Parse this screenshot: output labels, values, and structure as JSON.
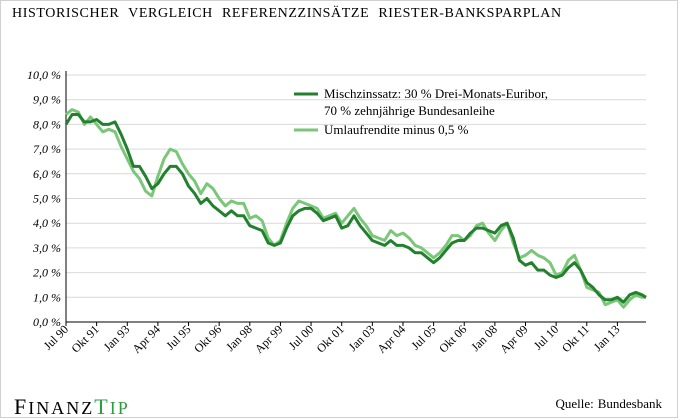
{
  "header": {
    "title": "HISTORISCHER VERGLEICH REFERENZZINSÄTZE RIESTER-BANKSPARPLAN"
  },
  "footer": {
    "logo_part1": "F",
    "logo_part2": "INANZ",
    "logo_part3": "T",
    "logo_part4": "IP",
    "source_label": "Quelle:",
    "source_value": "Bundesbank"
  },
  "colors": {
    "series_dark": "#23802f",
    "series_light": "#7bc779",
    "grid": "#d9d9d9",
    "logo_accent": "#2e9b3f"
  },
  "chart_data": {
    "type": "line",
    "title": "HISTORISCHER VERGLEICH REFERENZZINSÄTZE RIESTER-BANKSPARPLAN",
    "xlabel": "",
    "ylabel": "",
    "ylim": [
      0,
      10
    ],
    "y_ticks": [
      "0,0 %",
      "1,0 %",
      "2,0 %",
      "3,0 %",
      "4,0 %",
      "5,0 %",
      "6,0 %",
      "7,0 %",
      "8,0 %",
      "9,0 %",
      "10,0 %"
    ],
    "x_ticks": [
      {
        "label": "Jul 90",
        "x": "1990-07"
      },
      {
        "label": "Okt 91",
        "x": "1991-10"
      },
      {
        "label": "Jan 93",
        "x": "1993-01"
      },
      {
        "label": "Apr 94",
        "x": "1994-04"
      },
      {
        "label": "Jul 95",
        "x": "1995-07"
      },
      {
        "label": "Okt 96",
        "x": "1996-10"
      },
      {
        "label": "Jan 98",
        "x": "1998-01"
      },
      {
        "label": "Apr 99",
        "x": "1999-04"
      },
      {
        "label": "Jul 00",
        "x": "2000-07"
      },
      {
        "label": "Okt 01",
        "x": "2001-10"
      },
      {
        "label": "Jan 03",
        "x": "2003-01"
      },
      {
        "label": "Apr 04",
        "x": "2004-04"
      },
      {
        "label": "Jul 05",
        "x": "2005-07"
      },
      {
        "label": "Okt 06",
        "x": "2006-10"
      },
      {
        "label": "Jan 08",
        "x": "2008-01"
      },
      {
        "label": "Apr 09",
        "x": "2009-04"
      },
      {
        "label": "Jul 10",
        "x": "2010-07"
      },
      {
        "label": "Okt 11",
        "x": "2011-10"
      },
      {
        "label": "Jan 13",
        "x": "2013-01"
      }
    ],
    "x_range": [
      "1990-07",
      "2014-03"
    ],
    "grid": "horizontal",
    "legend_position": "top-right",
    "series": [
      {
        "name_line1": "Mischzinssatz: 30 % Drei-Monats-Euribor,",
        "name_line2": "70 % zehnjährige Bundesanleihe",
        "color": "#23802f",
        "points": [
          [
            "1990-07",
            8.0
          ],
          [
            "1990-10",
            8.4
          ],
          [
            "1991-01",
            8.4
          ],
          [
            "1991-04",
            8.1
          ],
          [
            "1991-07",
            8.1
          ],
          [
            "1991-10",
            8.2
          ],
          [
            "1992-01",
            8.0
          ],
          [
            "1992-04",
            8.0
          ],
          [
            "1992-07",
            8.1
          ],
          [
            "1992-10",
            7.6
          ],
          [
            "1993-01",
            7.0
          ],
          [
            "1993-04",
            6.3
          ],
          [
            "1993-07",
            6.3
          ],
          [
            "1993-10",
            5.9
          ],
          [
            "1994-01",
            5.4
          ],
          [
            "1994-04",
            5.6
          ],
          [
            "1994-07",
            6.0
          ],
          [
            "1994-10",
            6.3
          ],
          [
            "1995-01",
            6.3
          ],
          [
            "1995-04",
            6.0
          ],
          [
            "1995-07",
            5.5
          ],
          [
            "1995-10",
            5.2
          ],
          [
            "1996-01",
            4.8
          ],
          [
            "1996-04",
            5.0
          ],
          [
            "1996-07",
            4.7
          ],
          [
            "1996-10",
            4.5
          ],
          [
            "1997-01",
            4.3
          ],
          [
            "1997-04",
            4.5
          ],
          [
            "1997-07",
            4.3
          ],
          [
            "1997-10",
            4.3
          ],
          [
            "1998-01",
            3.9
          ],
          [
            "1998-04",
            3.8
          ],
          [
            "1998-07",
            3.7
          ],
          [
            "1998-10",
            3.2
          ],
          [
            "1999-01",
            3.1
          ],
          [
            "1999-04",
            3.2
          ],
          [
            "1999-07",
            3.8
          ],
          [
            "1999-10",
            4.3
          ],
          [
            "2000-01",
            4.5
          ],
          [
            "2000-04",
            4.6
          ],
          [
            "2000-07",
            4.6
          ],
          [
            "2000-10",
            4.4
          ],
          [
            "2001-01",
            4.1
          ],
          [
            "2001-04",
            4.2
          ],
          [
            "2001-07",
            4.3
          ],
          [
            "2001-10",
            3.8
          ],
          [
            "2002-01",
            3.9
          ],
          [
            "2002-04",
            4.3
          ],
          [
            "2002-07",
            3.9
          ],
          [
            "2002-10",
            3.6
          ],
          [
            "2003-01",
            3.3
          ],
          [
            "2003-04",
            3.2
          ],
          [
            "2003-07",
            3.1
          ],
          [
            "2003-10",
            3.3
          ],
          [
            "2004-01",
            3.1
          ],
          [
            "2004-04",
            3.1
          ],
          [
            "2004-07",
            3.0
          ],
          [
            "2004-10",
            2.8
          ],
          [
            "2005-01",
            2.8
          ],
          [
            "2005-04",
            2.6
          ],
          [
            "2005-07",
            2.4
          ],
          [
            "2005-10",
            2.6
          ],
          [
            "2006-01",
            2.9
          ],
          [
            "2006-04",
            3.2
          ],
          [
            "2006-07",
            3.3
          ],
          [
            "2006-10",
            3.3
          ],
          [
            "2007-01",
            3.6
          ],
          [
            "2007-04",
            3.8
          ],
          [
            "2007-07",
            3.8
          ],
          [
            "2007-10",
            3.7
          ],
          [
            "2008-01",
            3.6
          ],
          [
            "2008-04",
            3.9
          ],
          [
            "2008-07",
            4.0
          ],
          [
            "2008-10",
            3.4
          ],
          [
            "2009-01",
            2.5
          ],
          [
            "2009-04",
            2.3
          ],
          [
            "2009-07",
            2.4
          ],
          [
            "2009-10",
            2.1
          ],
          [
            "2010-01",
            2.1
          ],
          [
            "2010-04",
            1.9
          ],
          [
            "2010-07",
            1.8
          ],
          [
            "2010-10",
            1.9
          ],
          [
            "2011-01",
            2.2
          ],
          [
            "2011-04",
            2.4
          ],
          [
            "2011-07",
            2.1
          ],
          [
            "2011-10",
            1.6
          ],
          [
            "2012-01",
            1.4
          ],
          [
            "2012-04",
            1.1
          ],
          [
            "2012-07",
            0.9
          ],
          [
            "2012-10",
            0.9
          ],
          [
            "2013-01",
            1.0
          ],
          [
            "2013-04",
            0.8
          ],
          [
            "2013-07",
            1.1
          ],
          [
            "2013-10",
            1.2
          ],
          [
            "2014-01",
            1.1
          ],
          [
            "2014-03",
            1.0
          ]
        ]
      },
      {
        "name_line1": "Umlaufrendite minus 0,5 %",
        "name_line2": "",
        "color": "#7bc779",
        "points": [
          [
            "1990-07",
            8.4
          ],
          [
            "1990-10",
            8.6
          ],
          [
            "1991-01",
            8.5
          ],
          [
            "1991-04",
            8.0
          ],
          [
            "1991-07",
            8.3
          ],
          [
            "1991-10",
            8.0
          ],
          [
            "1992-01",
            7.7
          ],
          [
            "1992-04",
            7.8
          ],
          [
            "1992-07",
            7.7
          ],
          [
            "1992-10",
            7.1
          ],
          [
            "1993-01",
            6.6
          ],
          [
            "1993-04",
            6.1
          ],
          [
            "1993-07",
            5.8
          ],
          [
            "1993-10",
            5.3
          ],
          [
            "1994-01",
            5.1
          ],
          [
            "1994-04",
            5.9
          ],
          [
            "1994-07",
            6.6
          ],
          [
            "1994-10",
            7.0
          ],
          [
            "1995-01",
            6.9
          ],
          [
            "1995-04",
            6.4
          ],
          [
            "1995-07",
            6.0
          ],
          [
            "1995-10",
            5.7
          ],
          [
            "1996-01",
            5.2
          ],
          [
            "1996-04",
            5.6
          ],
          [
            "1996-07",
            5.4
          ],
          [
            "1996-10",
            5.0
          ],
          [
            "1997-01",
            4.7
          ],
          [
            "1997-04",
            4.9
          ],
          [
            "1997-07",
            4.8
          ],
          [
            "1997-10",
            4.8
          ],
          [
            "1998-01",
            4.2
          ],
          [
            "1998-04",
            4.3
          ],
          [
            "1998-07",
            4.1
          ],
          [
            "1998-10",
            3.4
          ],
          [
            "1999-01",
            3.1
          ],
          [
            "1999-04",
            3.3
          ],
          [
            "1999-07",
            4.0
          ],
          [
            "1999-10",
            4.6
          ],
          [
            "2000-01",
            4.9
          ],
          [
            "2000-04",
            4.8
          ],
          [
            "2000-07",
            4.7
          ],
          [
            "2000-10",
            4.6
          ],
          [
            "2001-01",
            4.2
          ],
          [
            "2001-04",
            4.3
          ],
          [
            "2001-07",
            4.4
          ],
          [
            "2001-10",
            4.0
          ],
          [
            "2002-01",
            4.3
          ],
          [
            "2002-04",
            4.6
          ],
          [
            "2002-07",
            4.2
          ],
          [
            "2002-10",
            3.9
          ],
          [
            "2003-01",
            3.5
          ],
          [
            "2003-04",
            3.4
          ],
          [
            "2003-07",
            3.3
          ],
          [
            "2003-10",
            3.7
          ],
          [
            "2004-01",
            3.5
          ],
          [
            "2004-04",
            3.6
          ],
          [
            "2004-07",
            3.4
          ],
          [
            "2004-10",
            3.1
          ],
          [
            "2005-01",
            3.0
          ],
          [
            "2005-04",
            2.8
          ],
          [
            "2005-07",
            2.6
          ],
          [
            "2005-10",
            2.8
          ],
          [
            "2006-01",
            3.1
          ],
          [
            "2006-04",
            3.5
          ],
          [
            "2006-07",
            3.5
          ],
          [
            "2006-10",
            3.3
          ],
          [
            "2007-01",
            3.5
          ],
          [
            "2007-04",
            3.9
          ],
          [
            "2007-07",
            4.0
          ],
          [
            "2007-10",
            3.6
          ],
          [
            "2008-01",
            3.3
          ],
          [
            "2008-04",
            3.7
          ],
          [
            "2008-07",
            4.0
          ],
          [
            "2008-10",
            3.2
          ],
          [
            "2009-01",
            2.6
          ],
          [
            "2009-04",
            2.7
          ],
          [
            "2009-07",
            2.9
          ],
          [
            "2009-10",
            2.7
          ],
          [
            "2010-01",
            2.6
          ],
          [
            "2010-04",
            2.4
          ],
          [
            "2010-07",
            1.9
          ],
          [
            "2010-10",
            2.0
          ],
          [
            "2011-01",
            2.5
          ],
          [
            "2011-04",
            2.7
          ],
          [
            "2011-07",
            2.1
          ],
          [
            "2011-10",
            1.4
          ],
          [
            "2012-01",
            1.3
          ],
          [
            "2012-04",
            1.2
          ],
          [
            "2012-07",
            0.7
          ],
          [
            "2012-10",
            0.8
          ],
          [
            "2013-01",
            0.9
          ],
          [
            "2013-04",
            0.6
          ],
          [
            "2013-07",
            0.9
          ],
          [
            "2013-10",
            1.1
          ],
          [
            "2014-01",
            1.0
          ],
          [
            "2014-03",
            1.0
          ]
        ]
      }
    ]
  }
}
